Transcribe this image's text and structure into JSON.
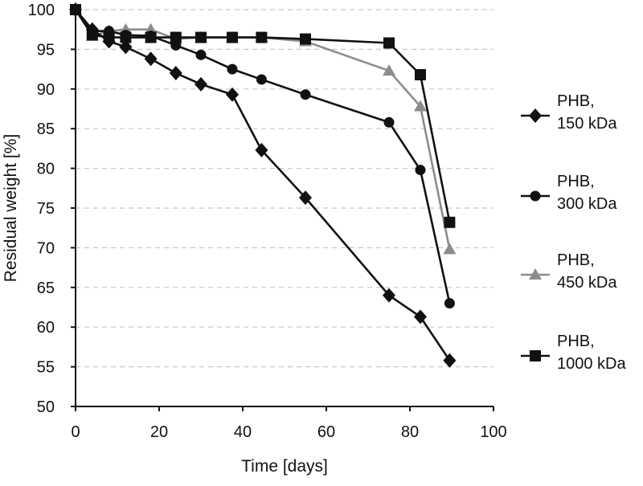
{
  "chart_data": {
    "type": "line",
    "title": "",
    "xlabel": "Time [days]",
    "ylabel": "Residual weight [%]",
    "xlim": [
      0,
      100
    ],
    "ylim": [
      50,
      100
    ],
    "xticks": [
      0,
      20,
      40,
      60,
      80,
      100
    ],
    "yticks": [
      50,
      55,
      60,
      65,
      70,
      75,
      80,
      85,
      90,
      95,
      100
    ],
    "grid": "horizontal dashed",
    "legend_position": "right",
    "series": [
      {
        "name": "PHB,\n150 kDa",
        "label_lines": [
          "PHB,",
          "150 kDa"
        ],
        "marker": "diamond",
        "color": "#111111",
        "x": [
          0,
          4,
          8,
          12,
          18,
          24,
          30,
          37.5,
          44.5,
          55,
          75,
          82.5,
          89.5
        ],
        "y": [
          100,
          97.5,
          96,
          95.3,
          93.8,
          92,
          90.6,
          89.3,
          82.3,
          76.3,
          64,
          61.3,
          55.8
        ]
      },
      {
        "name": "PHB,\n300 kDa",
        "label_lines": [
          "PHB,",
          "300 kDa"
        ],
        "marker": "circle",
        "color": "#111111",
        "x": [
          0,
          4,
          8,
          12,
          18,
          24,
          30,
          37.5,
          44.5,
          55,
          75,
          82.5,
          89.5
        ],
        "y": [
          100,
          97.3,
          97.3,
          96.8,
          96.7,
          95.5,
          94.3,
          92.5,
          91.2,
          89.3,
          85.8,
          79.8,
          63
        ]
      },
      {
        "name": "PHB,\n450 kDa",
        "label_lines": [
          "PHB,",
          "450 kDa"
        ],
        "marker": "triangle",
        "color": "#8c8c8c",
        "x": [
          0,
          4,
          8,
          12,
          18,
          24,
          30,
          37.5,
          44.5,
          55,
          75,
          82.5,
          89.5
        ],
        "y": [
          100,
          96.7,
          97.3,
          97.5,
          97.5,
          96.3,
          96.5,
          96.5,
          96.5,
          96,
          92.3,
          87.8,
          69.8
        ]
      },
      {
        "name": "PHB,\n1000 kDa",
        "label_lines": [
          "PHB,",
          "1000 kDa"
        ],
        "marker": "square",
        "color": "#111111",
        "x": [
          0,
          4,
          8,
          12,
          18,
          24,
          30,
          37.5,
          44.5,
          55,
          75,
          82.5,
          89.5
        ],
        "y": [
          100,
          96.8,
          96.5,
          96.5,
          96.5,
          96.5,
          96.5,
          96.5,
          96.5,
          96.3,
          95.8,
          91.8,
          73.2
        ]
      }
    ]
  }
}
